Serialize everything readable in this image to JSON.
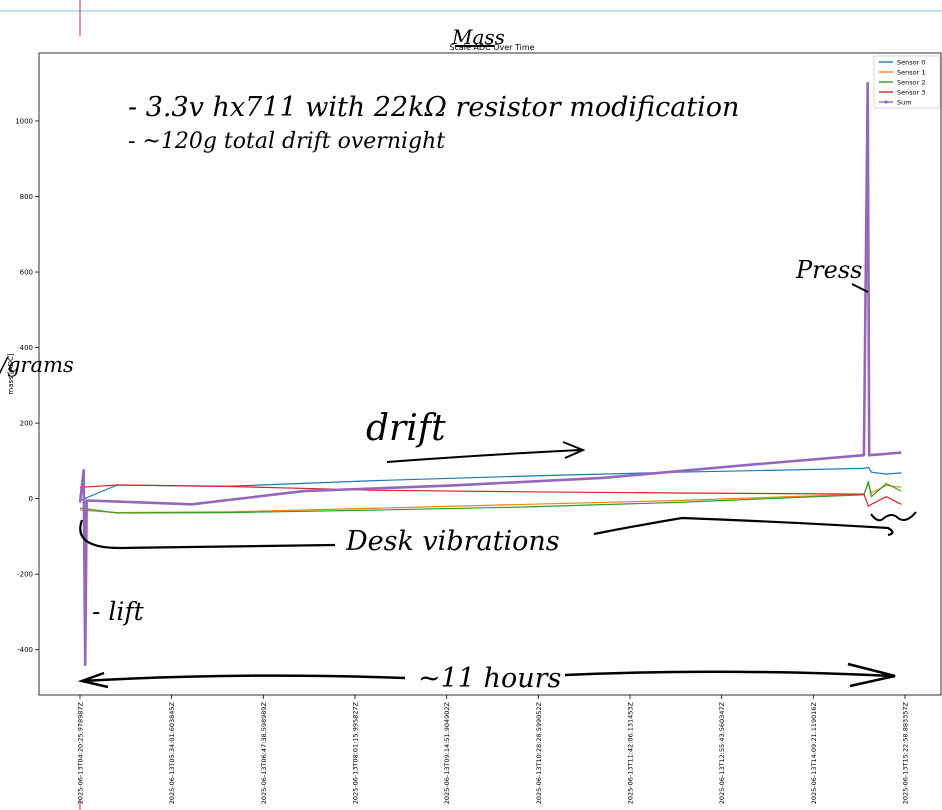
{
  "chart_data": {
    "type": "line",
    "title": "Scale ADC Over Time",
    "ylabel": "mass [ADC]",
    "xlabel": "",
    "ylim": [
      -520,
      1180
    ],
    "y_ticks": [
      -400,
      -200,
      0,
      200,
      400,
      600,
      800,
      1000
    ],
    "x_tick_labels": [
      "2025-06-13T04:20:25.978987Z",
      "2025-06-13T05:34:01.603845Z",
      "2025-06-13T06:47:38.598989Z",
      "2025-06-13T08:01:15.995827Z",
      "2025-06-13T09:14:51.904902Z",
      "2025-06-13T10:28:28.599052Z",
      "2025-06-13T11:42:06.131453Z",
      "2025-06-13T12:55:43.560347Z",
      "2025-06-13T14:09:21.119016Z",
      "2025-06-13T15:22:58.883357Z"
    ],
    "x_range_hours": [
      0,
      11.05
    ],
    "grid": false,
    "legend_position": "top-right",
    "series": [
      {
        "name": "Sensor 0",
        "color": "#1f77b4",
        "points": [
          [
            0,
            -5
          ],
          [
            0.5,
            36
          ],
          [
            2,
            33
          ],
          [
            4,
            48
          ],
          [
            6,
            60
          ],
          [
            8,
            70
          ],
          [
            10.5,
            80
          ],
          [
            10.56,
            83
          ],
          [
            10.6,
            70
          ],
          [
            10.8,
            65
          ],
          [
            11.0,
            68
          ]
        ]
      },
      {
        "name": "Sensor 1",
        "color": "#ff7f0e",
        "points": [
          [
            0,
            -30
          ],
          [
            0.5,
            -37
          ],
          [
            2,
            -35
          ],
          [
            4,
            -25
          ],
          [
            6,
            -15
          ],
          [
            8,
            -5
          ],
          [
            10.5,
            12
          ],
          [
            10.56,
            40
          ],
          [
            10.6,
            15
          ],
          [
            10.8,
            35
          ],
          [
            11.0,
            30
          ]
        ]
      },
      {
        "name": "Sensor 2",
        "color": "#2ca02c",
        "points": [
          [
            0,
            -25
          ],
          [
            0.5,
            -38
          ],
          [
            2,
            -37
          ],
          [
            4,
            -30
          ],
          [
            6,
            -22
          ],
          [
            8,
            -10
          ],
          [
            10.5,
            10
          ],
          [
            10.56,
            45
          ],
          [
            10.6,
            5
          ],
          [
            10.8,
            40
          ],
          [
            11.0,
            20
          ]
        ]
      },
      {
        "name": "Sensor 3",
        "color": "#d62728",
        "points": [
          [
            0,
            30
          ],
          [
            0.5,
            36
          ],
          [
            2,
            32
          ],
          [
            4,
            22
          ],
          [
            6,
            18
          ],
          [
            8,
            15
          ],
          [
            10.5,
            12
          ],
          [
            10.56,
            -20
          ],
          [
            10.6,
            -15
          ],
          [
            10.8,
            5
          ],
          [
            11.0,
            -15
          ]
        ]
      },
      {
        "name": "Sum",
        "color": "#9467bd",
        "points": [
          [
            0,
            -10
          ],
          [
            0.05,
            75
          ],
          [
            0.07,
            -440
          ],
          [
            0.09,
            -5
          ],
          [
            0.5,
            -8
          ],
          [
            1.5,
            -15
          ],
          [
            3,
            20
          ],
          [
            5,
            35
          ],
          [
            7,
            55
          ],
          [
            9,
            90
          ],
          [
            10.5,
            115
          ],
          [
            10.55,
            1100
          ],
          [
            10.57,
            115
          ],
          [
            11.0,
            122
          ]
        ]
      }
    ]
  },
  "annotations": {
    "title_hand": "Mass",
    "note_1": "- 3.3v hx711 with 22kΩ resistor modification",
    "note_2": "- ~120g total drift overnight",
    "press": "Press",
    "drift": "drift",
    "grams": "/grams",
    "desk": "Desk vibrations",
    "lift": "- lift",
    "hours": "~11 hours"
  }
}
